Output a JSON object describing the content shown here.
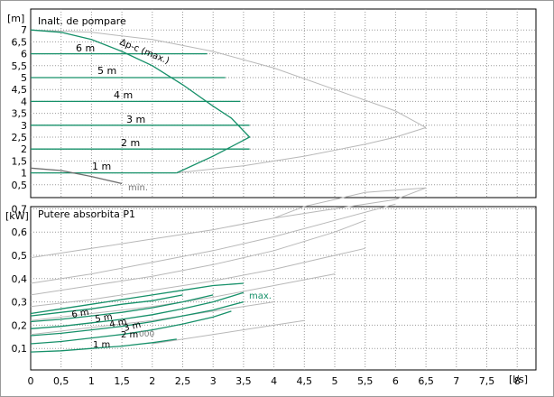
{
  "chart_data": [
    {
      "type": "line",
      "title": "Inalt. de pompare",
      "ylabel": "[m]",
      "xlabel": "",
      "xlim": [
        0,
        8.5
      ],
      "ylim": [
        0,
        7.5
      ],
      "grid": true,
      "yticks": [
        "0,5",
        "1",
        "1,5",
        "2",
        "2,5",
        "3",
        "3,5",
        "4",
        "4,5",
        "5",
        "5,5",
        "6",
        "6,5",
        "7"
      ],
      "ytick_values": [
        0.5,
        1,
        1.5,
        2,
        2.5,
        3,
        3.5,
        4,
        4.5,
        5,
        5.5,
        6,
        6.5,
        7
      ],
      "series": [
        {
          "name": "6 m",
          "color": "#169069",
          "x": [
            0,
            2.9
          ],
          "y": [
            6,
            6
          ]
        },
        {
          "name": "5 m",
          "color": "#169069",
          "x": [
            0,
            3.2
          ],
          "y": [
            5,
            5
          ]
        },
        {
          "name": "4 m",
          "color": "#169069",
          "x": [
            0,
            3.45
          ],
          "y": [
            4,
            4
          ]
        },
        {
          "name": "3 m",
          "color": "#169069",
          "x": [
            0,
            3.6
          ],
          "y": [
            3,
            3
          ]
        },
        {
          "name": "2 m",
          "color": "#169069",
          "x": [
            0,
            3.6
          ],
          "y": [
            2,
            2
          ]
        },
        {
          "name": "1 m",
          "color": "#169069",
          "x": [
            0,
            2.4
          ],
          "y": [
            1,
            1
          ]
        },
        {
          "name": "Δp-c (max.)",
          "color": "#169069",
          "x": [
            0,
            0.5,
            1.0,
            1.5,
            2.0,
            2.5,
            3.0,
            3.3,
            3.6,
            3.0,
            2.4
          ],
          "y": [
            7,
            6.9,
            6.6,
            6.1,
            5.5,
            4.7,
            3.8,
            3.3,
            2.5,
            1.7,
            1.0
          ]
        },
        {
          "name": "min.",
          "color": "#6f6f6f",
          "x": [
            0,
            0.5,
            1.0,
            1.5
          ],
          "y": [
            1.2,
            1.1,
            0.85,
            0.55
          ]
        },
        {
          "name": "",
          "color": "#b8b8b8",
          "x": [
            0,
            1.0,
            2.0,
            3.0,
            4.0,
            5.0,
            6.0,
            6.5
          ],
          "y": [
            7,
            6.9,
            6.6,
            6.1,
            5.4,
            4.5,
            3.6,
            2.9
          ]
        },
        {
          "name": "",
          "color": "#b8b8b8",
          "x": [
            6.5,
            6.0,
            5.5,
            4.5,
            3.5,
            2.4
          ],
          "y": [
            2.9,
            2.5,
            2.2,
            1.7,
            1.3,
            1.0
          ]
        }
      ],
      "annotations": [
        "6 m",
        "5 m",
        "4 m",
        "3 m",
        "2 m",
        "1 m",
        "Δp-c (max.)",
        "min."
      ]
    },
    {
      "type": "line",
      "title": "Putere absorbita P1",
      "ylabel": "[kW]",
      "xlabel": "[l/s]",
      "xlim": [
        0,
        8.5
      ],
      "ylim": [
        0,
        0.8
      ],
      "grid": true,
      "xticks": [
        "0",
        "0,5",
        "1",
        "1,5",
        "2",
        "2,5",
        "3",
        "3,5",
        "4",
        "4,5",
        "5",
        "5,5",
        "6",
        "6,5",
        "7",
        "7,5",
        "8"
      ],
      "xtick_values": [
        0,
        0.5,
        1,
        1.5,
        2,
        2.5,
        3,
        3.5,
        4,
        4.5,
        5,
        5.5,
        6,
        6.5,
        7,
        7.5,
        8
      ],
      "yticks": [
        "0,1",
        "0,2",
        "0,3",
        "0,4",
        "0,5",
        "0,6",
        "0,7"
      ],
      "ytick_values": [
        0.1,
        0.2,
        0.3,
        0.4,
        0.5,
        0.6,
        0.7
      ],
      "series": [
        {
          "name": "6 m",
          "color": "#169069",
          "x": [
            0,
            0.5,
            1.0,
            1.5,
            2.0,
            2.5
          ],
          "y": [
            0.24,
            0.255,
            0.27,
            0.29,
            0.305,
            0.33
          ]
        },
        {
          "name": "5 m",
          "color": "#169069",
          "x": [
            0,
            0.5,
            1.0,
            1.5,
            2.0,
            2.5,
            3.0
          ],
          "y": [
            0.215,
            0.225,
            0.24,
            0.255,
            0.275,
            0.3,
            0.33
          ]
        },
        {
          "name": "4 m",
          "color": "#169069",
          "x": [
            0,
            0.5,
            1.0,
            1.5,
            2.0,
            2.5,
            3.0,
            3.5
          ],
          "y": [
            0.185,
            0.195,
            0.21,
            0.225,
            0.245,
            0.27,
            0.3,
            0.34
          ]
        },
        {
          "name": "3 m",
          "color": "#169069",
          "x": [
            0,
            0.5,
            1.0,
            1.5,
            2.0,
            2.5,
            3.0,
            3.5
          ],
          "y": [
            0.155,
            0.165,
            0.18,
            0.195,
            0.215,
            0.24,
            0.265,
            0.3
          ]
        },
        {
          "name": "2 m",
          "color": "#169069",
          "x": [
            0,
            0.5,
            1.0,
            1.5,
            2.0,
            2.5,
            3.0,
            3.3
          ],
          "y": [
            0.12,
            0.13,
            0.145,
            0.16,
            0.18,
            0.205,
            0.235,
            0.26
          ]
        },
        {
          "name": "1 m",
          "color": "#169069",
          "x": [
            0,
            0.5,
            1.0,
            1.5,
            2.0,
            2.4
          ],
          "y": [
            0.085,
            0.09,
            0.1,
            0.11,
            0.125,
            0.14
          ]
        },
        {
          "name": "max.",
          "color": "#169069",
          "x": [
            0,
            0.5,
            1.0,
            1.5,
            2.0,
            2.5,
            3.0,
            3.5
          ],
          "y": [
            0.25,
            0.27,
            0.29,
            0.31,
            0.33,
            0.35,
            0.37,
            0.38
          ]
        },
        {
          "name": "",
          "color": "#b8b8b8",
          "x": [
            0,
            1.0,
            2.0,
            3.0,
            4.0,
            5.0,
            6.0,
            6.5
          ],
          "y": [
            0.49,
            0.53,
            0.57,
            0.61,
            0.66,
            0.7,
            0.74,
            0.79
          ]
        },
        {
          "name": "",
          "color": "#b8b8b8",
          "x": [
            0,
            1.0,
            2.0,
            3.0,
            4.0,
            5.0,
            6.0
          ],
          "y": [
            0.38,
            0.42,
            0.47,
            0.52,
            0.58,
            0.65,
            0.72
          ]
        },
        {
          "name": "",
          "color": "#b8b8b8",
          "x": [
            0,
            1.0,
            2.0,
            3.0,
            4.0,
            5.0,
            5.5
          ],
          "y": [
            0.33,
            0.37,
            0.41,
            0.46,
            0.52,
            0.6,
            0.65
          ]
        },
        {
          "name": "",
          "color": "#b8b8b8",
          "x": [
            0,
            1.0,
            2.0,
            3.0,
            4.0,
            5.0,
            5.5
          ],
          "y": [
            0.28,
            0.31,
            0.35,
            0.39,
            0.44,
            0.5,
            0.53
          ]
        },
        {
          "name": "",
          "color": "#b8b8b8",
          "x": [
            0,
            1.0,
            2.0,
            3.0,
            4.0,
            5.0
          ],
          "y": [
            0.22,
            0.25,
            0.28,
            0.32,
            0.37,
            0.42
          ]
        },
        {
          "name": "",
          "color": "#b8b8b8",
          "x": [
            0,
            1.0,
            2.0,
            3.0,
            4.0
          ],
          "y": [
            0.16,
            0.19,
            0.22,
            0.26,
            0.3
          ]
        },
        {
          "name": "",
          "color": "#b8b8b8",
          "x": [
            2.0,
            3.0,
            4.0,
            4.5
          ],
          "y": [
            0.12,
            0.16,
            0.2,
            0.22
          ]
        },
        {
          "name": "",
          "color": "#b8b8b8",
          "x": [
            4.0,
            4.5,
            5.0,
            5.5,
            6.0,
            6.5
          ],
          "y": [
            0.66,
            0.71,
            0.74,
            0.77,
            0.78,
            0.79
          ]
        }
      ],
      "annotations": [
        "6 m",
        "5 m",
        "4 m",
        "3 m",
        "2 m",
        "1 m",
        "max.",
        "000"
      ]
    }
  ]
}
